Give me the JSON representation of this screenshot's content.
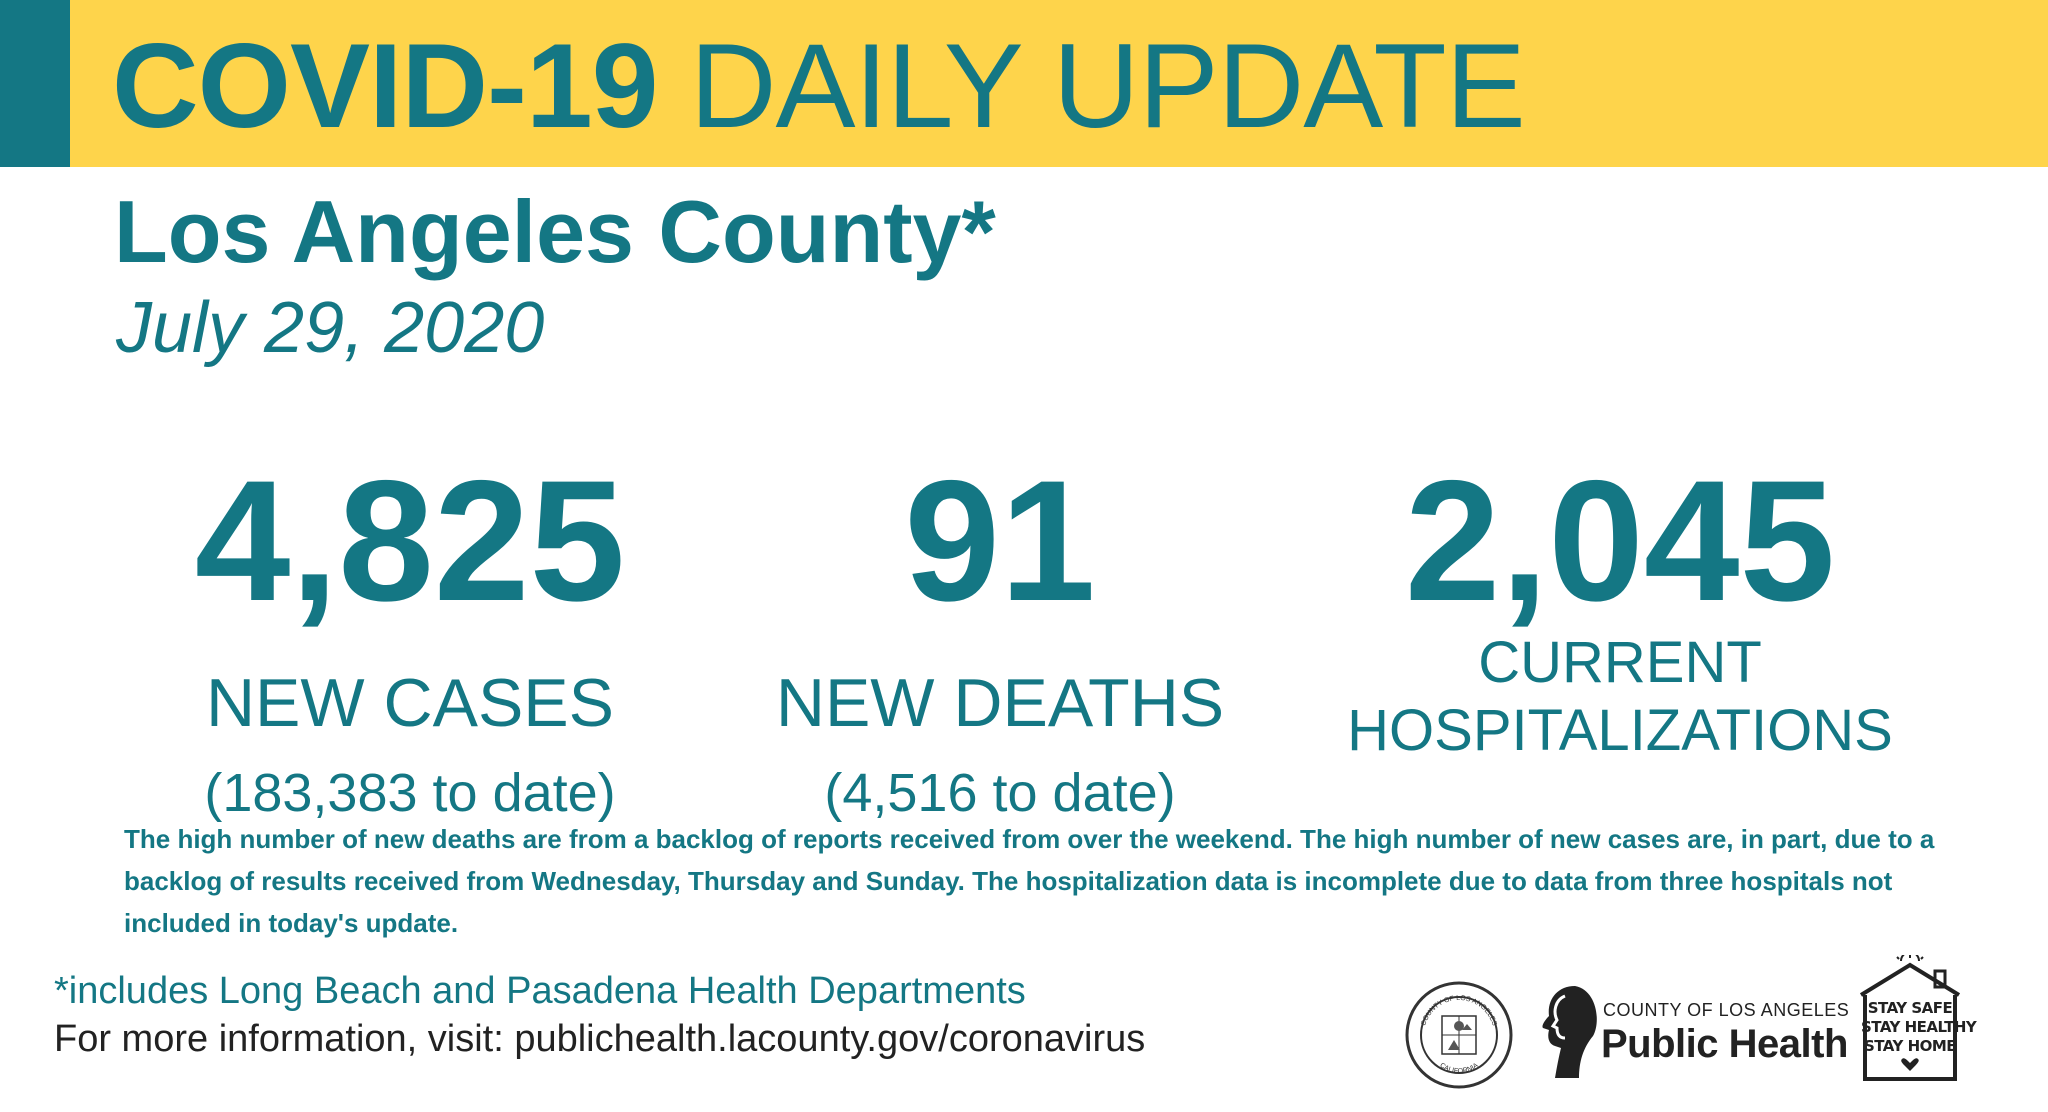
{
  "banner": {
    "title_bold": "COVID-19",
    "title_rest": "DAILY UPDATE"
  },
  "header": {
    "location": "Los Angeles County*",
    "date": "July 29, 2020"
  },
  "stats": {
    "new_cases": {
      "value": "4,825",
      "label": "NEW CASES",
      "to_date": "(183,383 to date)"
    },
    "new_deaths": {
      "value": "91",
      "label": "NEW DEATHS",
      "to_date": "(4,516 to date)"
    },
    "hospitalizations": {
      "value": "2,045",
      "label_line1": "CURRENT",
      "label_line2": "HOSPITALIZATIONS"
    }
  },
  "note": "The high number of new deaths are from a backlog of reports received from over the weekend.  The high number of new cases are, in part, due to a backlog of results received from Wednesday, Thursday and Sunday. The hospitalization data is incomplete due to data from three hospitals not included in today's update.",
  "footer": {
    "includes": "*includes Long Beach and Pasadena Health Departments",
    "more_info": "For more information, visit: publichealth.lacounty.gov/coronavirus"
  },
  "logos": {
    "seal_icon": "county-seal-icon",
    "seal_text_top": "COUNTY OF LOS ANGELES",
    "seal_text_bottom": "CALIFORNIA",
    "public_health_small": "COUNTY OF LOS ANGELES",
    "public_health_big": "Public Health",
    "stay_lines": [
      "STAY SAFE",
      "STAY HEALTHY",
      "STAY HOME"
    ]
  },
  "colors": {
    "teal": "#147784",
    "yellow": "#fed44b",
    "footer_gray": "#222222"
  }
}
